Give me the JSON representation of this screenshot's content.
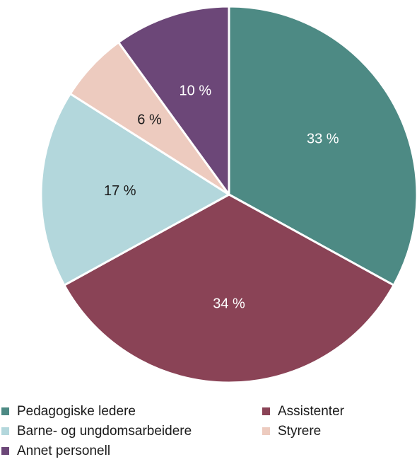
{
  "chart_data": {
    "type": "pie",
    "title": "",
    "categories": [
      "Pedagogiske ledere",
      "Assistenter",
      "Barne- og ungdomsarbeidere",
      "Styrere",
      "Annet personell"
    ],
    "values": [
      33,
      34,
      17,
      6,
      10
    ],
    "labels": [
      "33 %",
      "34 %",
      "17 %",
      "6 %",
      "10 %"
    ],
    "colors": [
      "#4d8a84",
      "#8a4356",
      "#b3d7dc",
      "#edcbbf",
      "#6c4778"
    ],
    "label_colors": [
      "#ffffff",
      "#ffffff",
      "#1a1a1a",
      "#1a1a1a",
      "#ffffff"
    ],
    "start": "12 o'clock",
    "direction": "clockwise",
    "legend_position": "bottom"
  },
  "legend": {
    "items": [
      {
        "label": "Pedagogiske ledere",
        "color": "#4d8a84"
      },
      {
        "label": "Assistenter",
        "color": "#8a4356"
      },
      {
        "label": "Barne- og ungdomsarbeidere",
        "color": "#b3d7dc"
      },
      {
        "label": "Styrere",
        "color": "#edcbbf"
      },
      {
        "label": "Annet personell",
        "color": "#6c4778"
      }
    ]
  }
}
